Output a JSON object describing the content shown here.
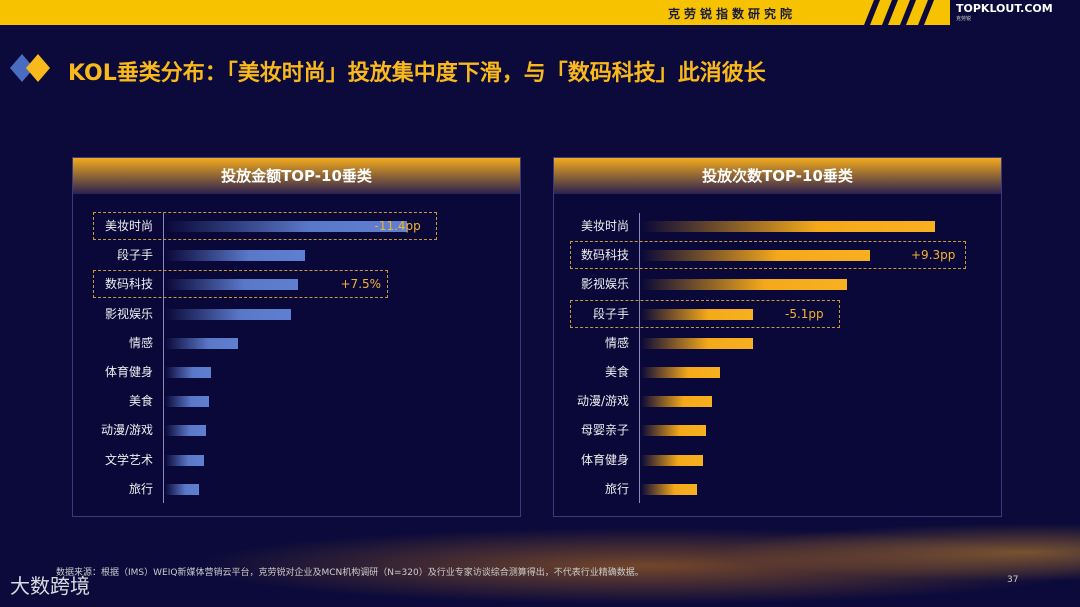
{
  "header": {
    "org": "克劳锐指数研究院",
    "logo": "TOPKLOUT.COM",
    "logo_sub": "克劳锐"
  },
  "title": "KOL垂类分布：「美妆时尚」投放集中度下滑，与「数码科技」此消彼长",
  "colors": {
    "accent": "#f7c200",
    "title": "#f9b81b",
    "background": "#0b0a3b",
    "bar_left": "#5a78c8",
    "bar_right": "#f5a91a"
  },
  "chart_data": [
    {
      "type": "bar",
      "orientation": "horizontal",
      "title": "投放金额TOP-10垂类",
      "categories": [
        "美妆时尚",
        "段子手",
        "数码科技",
        "影视娱乐",
        "情感",
        "体育健身",
        "美食",
        "动漫/游戏",
        "文学艺术",
        "旅行"
      ],
      "values": [
        100,
        58,
        55,
        52,
        30,
        19,
        18,
        17,
        16,
        14
      ],
      "value_note": "relative bar length, no axis printed",
      "annotations": [
        {
          "category": "美妆时尚",
          "text": "-11.4pp"
        },
        {
          "category": "数码科技",
          "text": "+7.5%"
        }
      ]
    },
    {
      "type": "bar",
      "orientation": "horizontal",
      "title": "投放次数TOP-10垂类",
      "categories": [
        "美妆时尚",
        "数码科技",
        "影视娱乐",
        "段子手",
        "情感",
        "美食",
        "动漫/游戏",
        "母婴亲子",
        "体育健身",
        "旅行"
      ],
      "values": [
        100,
        78,
        70,
        38,
        38,
        27,
        24,
        22,
        21,
        19
      ],
      "annotations": [
        {
          "category": "数码科技",
          "text": "+9.3pp"
        },
        {
          "category": "段子手",
          "text": "-5.1pp"
        }
      ]
    }
  ],
  "footer": {
    "source": "数据来源：根据（IMS）WEIQ新媒体营销云平台，克劳锐对企业及MCN机构调研（N=320）及行业专家访谈综合测算得出，不代表行业精确数据。",
    "page": "37",
    "watermark": "大数跨境"
  }
}
